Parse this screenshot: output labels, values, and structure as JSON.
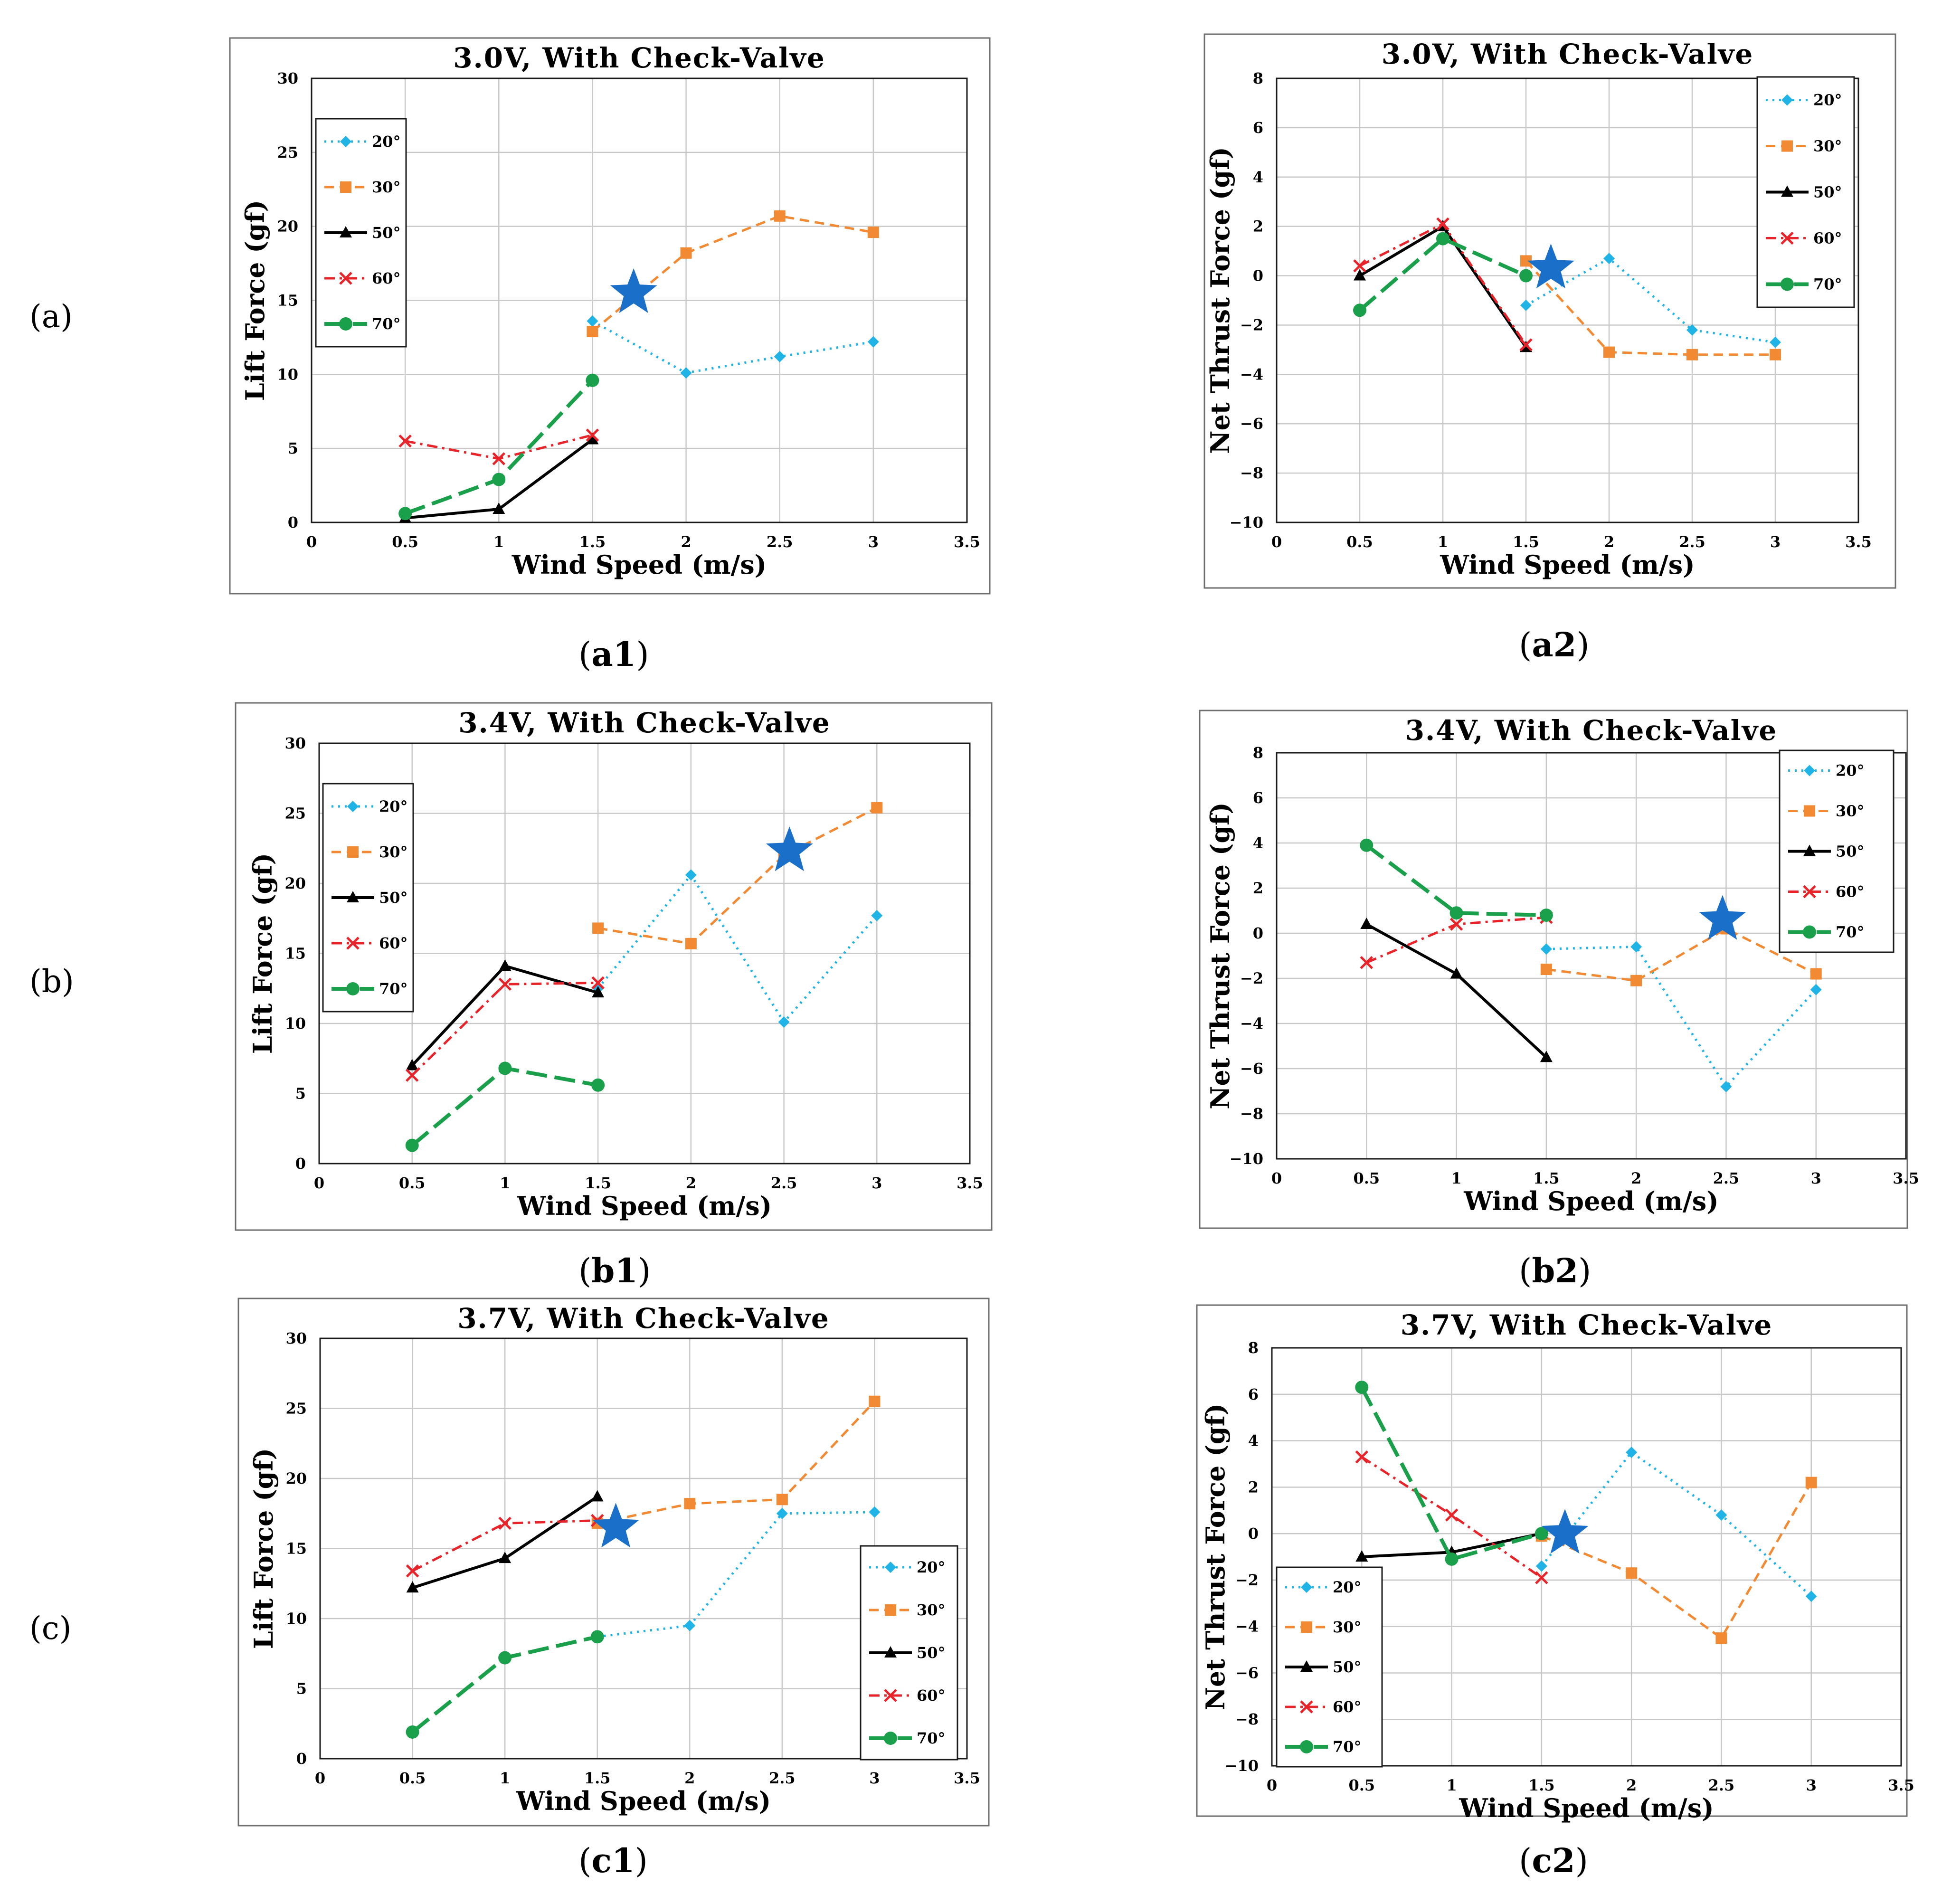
{
  "row_labels": [
    "(a)",
    "(b)",
    "(c)"
  ],
  "series_styles": [
    {
      "name": "20°",
      "color": "#1fb3e6",
      "dash": "4,10",
      "marker": "diamond",
      "width": 5
    },
    {
      "name": "30°",
      "color": "#f28a33",
      "dash": "20,12",
      "marker": "square",
      "width": 5
    },
    {
      "name": "50°",
      "color": "#000000",
      "dash": "",
      "marker": "triangle",
      "width": 6
    },
    {
      "name": "60°",
      "color": "#e8242b",
      "dash": "22,10,5,10",
      "marker": "x",
      "width": 5
    },
    {
      "name": "70°",
      "color": "#1a9f4a",
      "dash": "44,16",
      "marker": "circle",
      "width": 8
    }
  ],
  "star_color": "#1a6fc9",
  "chart_data": [
    {
      "type": "line",
      "panel": "a1",
      "caption": "a1",
      "title": "3.0V, With Check-Valve",
      "xlabel": "Wind Speed (m/s)",
      "ylabel": "Lift  Force (gf)",
      "xlim": [
        0,
        3.5
      ],
      "ylim": [
        0,
        30
      ],
      "xticks": [
        0,
        0.5,
        1,
        1.5,
        2,
        2.5,
        3,
        3.5
      ],
      "xtick_labels": [
        "0",
        "0.5",
        "1",
        "1.5",
        "2",
        "2.5",
        "3",
        "3.5"
      ],
      "yticks": [
        0,
        5,
        10,
        15,
        20,
        25,
        30
      ],
      "ytick_labels": [
        "0",
        "5",
        "10",
        "15",
        "20",
        "25",
        "30"
      ],
      "legend": "top-left",
      "legend_entries": [
        "20°",
        "30°",
        "50°",
        "60°",
        "70°"
      ],
      "series": [
        {
          "name": "20°",
          "x": [
            1.5,
            2,
            2.5,
            3
          ],
          "values": [
            13.6,
            10.1,
            11.2,
            12.2
          ]
        },
        {
          "name": "30°",
          "x": [
            1.5,
            2,
            2.5,
            3
          ],
          "values": [
            12.9,
            18.2,
            20.7,
            19.6
          ]
        },
        {
          "name": "50°",
          "x": [
            0.5,
            1,
            1.5
          ],
          "values": [
            0.3,
            0.9,
            5.6
          ]
        },
        {
          "name": "60°",
          "x": [
            0.5,
            1,
            1.5
          ],
          "values": [
            5.5,
            4.3,
            5.9
          ]
        },
        {
          "name": "70°",
          "x": [
            0.5,
            1,
            1.5
          ],
          "values": [
            0.6,
            2.9,
            9.6
          ]
        }
      ],
      "star": {
        "x": 1.72,
        "y": 15.5
      }
    },
    {
      "type": "line",
      "panel": "a2",
      "caption": "a2",
      "title": "3.0V, With Check-Valve",
      "xlabel": "Wind Speed (m/s)",
      "ylabel": "Net Thrust Force (gf)",
      "xlim": [
        0,
        3.5
      ],
      "ylim": [
        -10,
        8
      ],
      "xticks": [
        0,
        0.5,
        1,
        1.5,
        2,
        2.5,
        3,
        3.5
      ],
      "xtick_labels": [
        "0",
        "0.5",
        "1",
        "1.5",
        "2",
        "2.5",
        "3",
        "3.5"
      ],
      "yticks": [
        -10,
        -8,
        -6,
        -4,
        -2,
        0,
        2,
        4,
        6,
        8
      ],
      "ytick_labels": [
        "−10",
        "−8",
        "−6",
        "−4",
        "−2",
        "0",
        "2",
        "4",
        "6",
        "8"
      ],
      "legend": "top-right",
      "legend_entries": [
        "20°",
        "30°",
        "50°",
        "60°",
        "70°"
      ],
      "series": [
        {
          "name": "20°",
          "x": [
            1.5,
            2,
            2.5,
            3
          ],
          "values": [
            -1.2,
            0.7,
            -2.2,
            -2.7
          ]
        },
        {
          "name": "30°",
          "x": [
            1.5,
            2,
            2.5,
            3
          ],
          "values": [
            0.6,
            -3.1,
            -3.2,
            -3.2
          ]
        },
        {
          "name": "50°",
          "x": [
            0.5,
            1,
            1.5
          ],
          "values": [
            0.0,
            2.0,
            -2.9
          ]
        },
        {
          "name": "60°",
          "x": [
            0.5,
            1,
            1.5
          ],
          "values": [
            0.4,
            2.1,
            -2.8
          ]
        },
        {
          "name": "70°",
          "x": [
            0.5,
            1,
            1.5
          ],
          "values": [
            -1.4,
            1.5,
            0.0
          ]
        }
      ],
      "star": {
        "x": 1.65,
        "y": 0.3
      }
    },
    {
      "type": "line",
      "panel": "b1",
      "caption": "b1",
      "title": "3.4V, With Check-Valve",
      "xlabel": "Wind Speed (m/s)",
      "ylabel": "Lift  Force (gf)",
      "xlim": [
        0,
        3.5
      ],
      "ylim": [
        0,
        30
      ],
      "xticks": [
        0,
        0.5,
        1,
        1.5,
        2,
        2.5,
        3,
        3.5
      ],
      "xtick_labels": [
        "0",
        "0.5",
        "1",
        "1.5",
        "2",
        "2.5",
        "3",
        "3.5"
      ],
      "yticks": [
        0,
        5,
        10,
        15,
        20,
        25,
        30
      ],
      "ytick_labels": [
        "0",
        "5",
        "10",
        "15",
        "20",
        "25",
        "30"
      ],
      "legend": "top-left",
      "legend_entries": [
        "20°",
        "30°",
        "50°",
        "60°",
        "70°"
      ],
      "series": [
        {
          "name": "20°",
          "x": [
            1.5,
            2,
            2.5,
            3
          ],
          "values": [
            12.5,
            20.6,
            10.1,
            17.7
          ]
        },
        {
          "name": "30°",
          "x": [
            1.5,
            2,
            2.5,
            3
          ],
          "values": [
            16.8,
            15.7,
            22.0,
            25.4
          ]
        },
        {
          "name": "50°",
          "x": [
            0.5,
            1,
            1.5
          ],
          "values": [
            7.0,
            14.1,
            12.2
          ]
        },
        {
          "name": "60°",
          "x": [
            0.5,
            1,
            1.5
          ],
          "values": [
            6.3,
            12.8,
            12.9
          ]
        },
        {
          "name": "70°",
          "x": [
            0.5,
            1,
            1.5
          ],
          "values": [
            1.3,
            6.8,
            5.6
          ]
        }
      ],
      "star": {
        "x": 2.53,
        "y": 22.3
      }
    },
    {
      "type": "line",
      "panel": "b2",
      "caption": "b2",
      "title": "3.4V, With Check-Valve",
      "xlabel": "Wind Speed (m/s)",
      "ylabel": "Net Thrust Force (gf)",
      "xlim": [
        0,
        3.5
      ],
      "ylim": [
        -10,
        8
      ],
      "xticks": [
        0,
        0.5,
        1,
        1.5,
        2,
        2.5,
        3,
        3.5
      ],
      "xtick_labels": [
        "0",
        "0.5",
        "1",
        "1.5",
        "2",
        "2.5",
        "3",
        "3.5"
      ],
      "yticks": [
        -10,
        -8,
        -6,
        -4,
        -2,
        0,
        2,
        4,
        6,
        8
      ],
      "ytick_labels": [
        "−10",
        "−8",
        "−6",
        "−4",
        "−2",
        "0",
        "2",
        "4",
        "6",
        "8"
      ],
      "legend": "top-right",
      "legend_entries": [
        "20°",
        "30°",
        "50°",
        "60°",
        "70°"
      ],
      "series": [
        {
          "name": "20°",
          "x": [
            1.5,
            2,
            2.5,
            3
          ],
          "values": [
            -0.7,
            -0.6,
            -6.8,
            -2.5
          ]
        },
        {
          "name": "30°",
          "x": [
            1.5,
            2,
            2.5,
            3
          ],
          "values": [
            -1.6,
            -2.1,
            0.2,
            -1.8
          ]
        },
        {
          "name": "50°",
          "x": [
            0.5,
            1,
            1.5
          ],
          "values": [
            0.4,
            -1.8,
            -5.5
          ]
        },
        {
          "name": "60°",
          "x": [
            0.5,
            1,
            1.5
          ],
          "values": [
            -1.3,
            0.4,
            0.7
          ]
        },
        {
          "name": "70°",
          "x": [
            0.5,
            1,
            1.5
          ],
          "values": [
            3.9,
            0.9,
            0.8
          ]
        }
      ],
      "star": {
        "x": 2.48,
        "y": 0.6
      }
    },
    {
      "type": "line",
      "panel": "c1",
      "caption": "c1",
      "title": "3.7V, With Check-Valve",
      "xlabel": "Wind Speed (m/s)",
      "ylabel": "Lift  Force (gf)",
      "xlim": [
        0,
        3.5
      ],
      "ylim": [
        0,
        30
      ],
      "xticks": [
        0,
        0.5,
        1,
        1.5,
        2,
        2.5,
        3,
        3.5
      ],
      "xtick_labels": [
        "0",
        "0.5",
        "1",
        "1.5",
        "2",
        "2.5",
        "3",
        "3.5"
      ],
      "yticks": [
        0,
        5,
        10,
        15,
        20,
        25,
        30
      ],
      "ytick_labels": [
        "0",
        "5",
        "10",
        "15",
        "20",
        "25",
        "30"
      ],
      "legend": "bottom-right",
      "legend_entries": [
        "20°",
        "30°",
        "50°",
        "60°",
        "70°"
      ],
      "series": [
        {
          "name": "20°",
          "x": [
            1.5,
            2,
            2.5,
            3
          ],
          "values": [
            8.7,
            9.5,
            17.5,
            17.6
          ]
        },
        {
          "name": "30°",
          "x": [
            1.5,
            2,
            2.5,
            3
          ],
          "values": [
            16.8,
            18.2,
            18.5,
            25.5
          ]
        },
        {
          "name": "50°",
          "x": [
            0.5,
            1,
            1.5
          ],
          "values": [
            12.2,
            14.3,
            18.7
          ]
        },
        {
          "name": "60°",
          "x": [
            0.5,
            1,
            1.5
          ],
          "values": [
            13.4,
            16.8,
            17.0
          ]
        },
        {
          "name": "70°",
          "x": [
            0.5,
            1,
            1.5
          ],
          "values": [
            1.9,
            7.2,
            8.7
          ]
        }
      ],
      "star": {
        "x": 1.6,
        "y": 16.5
      }
    },
    {
      "type": "line",
      "panel": "c2",
      "caption": "c2",
      "title": "3.7V, With Check-Valve",
      "xlabel": "Wind Speed (m/s)",
      "ylabel": "Net Thrust Force (gf)",
      "xlim": [
        0,
        3.5
      ],
      "ylim": [
        -10,
        8
      ],
      "xticks": [
        0,
        0.5,
        1,
        1.5,
        2,
        2.5,
        3,
        3.5
      ],
      "xtick_labels": [
        "0",
        "0.5",
        "1",
        "1.5",
        "2",
        "2.5",
        "3",
        "3.5"
      ],
      "yticks": [
        -10,
        -8,
        -6,
        -4,
        -2,
        0,
        2,
        4,
        6,
        8
      ],
      "ytick_labels": [
        "−10",
        "−8",
        "−6",
        "−4",
        "−2",
        "0",
        "2",
        "4",
        "6",
        "8"
      ],
      "legend": "bottom-left",
      "legend_entries": [
        "20°",
        "30°",
        "50°",
        "60°",
        "70°"
      ],
      "series": [
        {
          "name": "20°",
          "x": [
            1.5,
            2,
            2.5,
            3
          ],
          "values": [
            -1.4,
            3.5,
            0.8,
            -2.7
          ]
        },
        {
          "name": "30°",
          "x": [
            1.5,
            2,
            2.5,
            3
          ],
          "values": [
            -0.1,
            -1.7,
            -4.5,
            2.2
          ]
        },
        {
          "name": "50°",
          "x": [
            0.5,
            1,
            1.5
          ],
          "values": [
            -1.0,
            -0.8,
            0.0
          ]
        },
        {
          "name": "60°",
          "x": [
            0.5,
            1,
            1.5
          ],
          "values": [
            3.3,
            0.8,
            -1.9
          ]
        },
        {
          "name": "70°",
          "x": [
            0.5,
            1,
            1.5
          ],
          "values": [
            6.3,
            -1.1,
            0.0
          ]
        }
      ],
      "star": {
        "x": 1.63,
        "y": 0.0
      }
    }
  ]
}
